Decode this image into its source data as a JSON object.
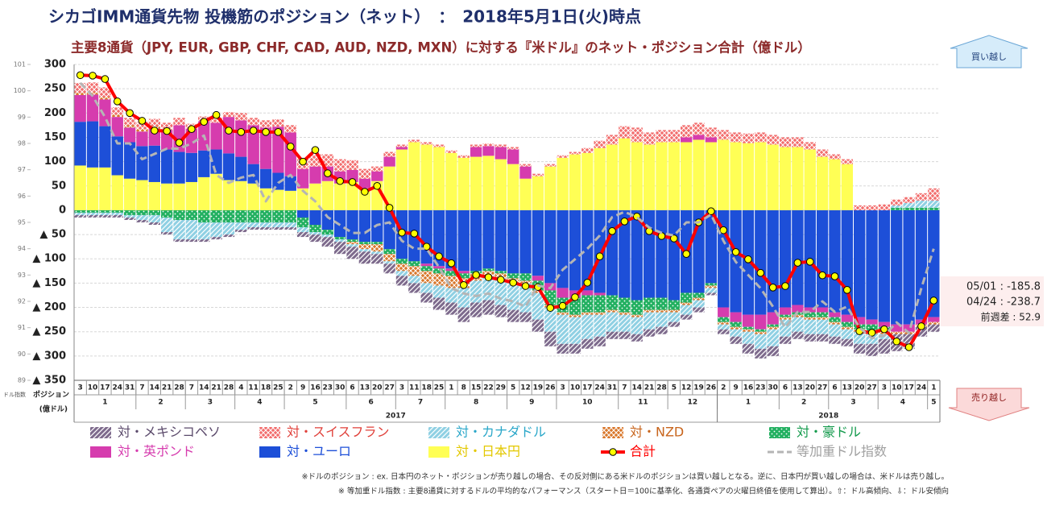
{
  "chart_data": {
    "type": "bar",
    "stacked": true,
    "title": "シカゴIMM通貨先物 投機筋のポジション（ネット）　：　2018年5月1日(火)時点",
    "subtitle": "主要8通貨（JPY, EUR, GBP, CHF, CAD, AUD, NZD, MXN）に対する『米ドル』のネット・ポジション合計（億ドル）",
    "y_axis_label": [
      "ポジション",
      "(億ドル)"
    ],
    "y2_axis_label": "ドル指数",
    "buttons": {
      "up": "買い越し",
      "down": "売り越し"
    },
    "annotations": [
      "05/01 : -185.8",
      "04/24 : -238.7",
      "前週差 : 52.9"
    ],
    "notes": [
      "※ドルのポジション : ex. 日本円のネット・ポジションが売り越しの場合、その反対側にある米ドルのポジションは買い越しとなる。逆に、日本円が買い越しの場合は、米ドルは売り越し。",
      "※ 等加重ドル指数 : 主要8通貨に対するドルの平均的なパフォーマンス（スタート日＝100に基準化、各通貨ペアの火曜日終値を使用して算出）。⇧：ドル高傾向、⇩：ドル安傾向"
    ],
    "years": [
      {
        "label": "2017",
        "months": [
          {
            "label": "1",
            "days": [
              "3",
              "10",
              "17",
              "24",
              "31"
            ]
          },
          {
            "label": "2",
            "days": [
              "7",
              "14",
              "21",
              "28"
            ]
          },
          {
            "label": "3",
            "days": [
              "7",
              "14",
              "21",
              "28"
            ]
          },
          {
            "label": "4",
            "days": [
              "4",
              "11",
              "18",
              "25"
            ]
          },
          {
            "label": "5",
            "days": [
              "2",
              "9",
              "16",
              "23",
              "30"
            ]
          },
          {
            "label": "6",
            "days": [
              "6",
              "13",
              "20",
              "27"
            ]
          },
          {
            "label": "7",
            "days": [
              "3",
              "11",
              "18",
              "25"
            ]
          },
          {
            "label": "8",
            "days": [
              "1",
              "8",
              "15",
              "22",
              "29"
            ]
          },
          {
            "label": "9",
            "days": [
              "5",
              "12",
              "19",
              "26"
            ]
          },
          {
            "label": "10",
            "days": [
              "3",
              "10",
              "17",
              "24",
              "31"
            ]
          },
          {
            "label": "11",
            "days": [
              "7",
              "14",
              "21",
              "28"
            ]
          },
          {
            "label": "12",
            "days": [
              "5",
              "12",
              "19",
              "26"
            ]
          }
        ]
      },
      {
        "label": "2018",
        "months": [
          {
            "label": "1",
            "days": [
              "2",
              "9",
              "16",
              "23",
              "30"
            ]
          },
          {
            "label": "2",
            "days": [
              "6",
              "13",
              "20",
              "27"
            ]
          },
          {
            "label": "3",
            "days": [
              "6",
              "13",
              "20",
              "27"
            ]
          },
          {
            "label": "4",
            "days": [
              "3",
              "10",
              "17",
              "24"
            ]
          },
          {
            "label": "5",
            "days": [
              "1"
            ]
          }
        ]
      }
    ],
    "ylim": [
      -350,
      300
    ],
    "yticks": [
      300,
      250,
      200,
      150,
      100,
      50,
      0,
      {
        "value": -50,
        "label": "▲ 50"
      },
      {
        "value": -100,
        "label": "▲ 100"
      },
      {
        "value": -150,
        "label": "▲ 150"
      },
      {
        "value": -200,
        "label": "▲ 200"
      },
      {
        "value": -250,
        "label": "▲ 250"
      },
      {
        "value": -300,
        "label": "▲ 300"
      },
      {
        "value": -350,
        "label": "▲ 350"
      }
    ],
    "y2lim": [
      89,
      101
    ],
    "y2ticks": [
      89,
      90,
      91,
      92,
      93,
      94,
      95,
      96,
      97,
      98,
      99,
      100,
      101
    ],
    "grid": true,
    "series": [
      {
        "name": "対・メキシコペソ",
        "type": "bar",
        "pattern": "diagonal",
        "color": "#7d6a8c",
        "label_color": "#5b4a6b",
        "values": [
          -5,
          -5,
          -5,
          -5,
          -5,
          -5,
          -5,
          -5,
          -5,
          -5,
          -5,
          -5,
          -5,
          -5,
          -5,
          -5,
          -5,
          -5,
          -10,
          -15,
          -20,
          -25,
          -25,
          -25,
          -20,
          -20,
          -20,
          -20,
          -20,
          -25,
          -25,
          -30,
          -30,
          -30,
          -25,
          -25,
          -20,
          -25,
          -30,
          -20,
          -20,
          -20,
          -20,
          -15,
          -15,
          -15,
          -15,
          -15,
          -10,
          -10,
          -10,
          -5,
          -10,
          -15,
          -20,
          -20,
          -20,
          -15,
          -15,
          -15,
          -15,
          -15,
          -15,
          -20,
          -25,
          -30,
          -35,
          -30,
          -20,
          -15
        ]
      },
      {
        "name": "対・スイスフラン",
        "type": "bar",
        "pattern": "cross",
        "color": "#f26d6d",
        "label_color": "#e0403a",
        "values": [
          20,
          20,
          20,
          15,
          15,
          15,
          15,
          15,
          15,
          10,
          10,
          10,
          10,
          15,
          15,
          15,
          15,
          15,
          20,
          25,
          25,
          25,
          20,
          20,
          10,
          10,
          5,
          5,
          5,
          5,
          5,
          5,
          5,
          5,
          5,
          5,
          5,
          5,
          5,
          5,
          5,
          10,
          15,
          20,
          25,
          30,
          25,
          25,
          25,
          25,
          25,
          20,
          20,
          20,
          20,
          20,
          20,
          20,
          20,
          15,
          15,
          10,
          10,
          10,
          10,
          12,
          12,
          12,
          15,
          25
        ]
      },
      {
        "name": "対・カナダドル",
        "type": "bar",
        "pattern": "diagonal",
        "color": "#8fd0e3",
        "label_color": "#2aa7c9",
        "values": [
          -5,
          -5,
          -5,
          -5,
          -5,
          -10,
          -15,
          -30,
          -40,
          -40,
          -35,
          -30,
          -25,
          -15,
          -10,
          -10,
          -10,
          -10,
          -10,
          -5,
          -5,
          -5,
          -5,
          -5,
          -5,
          -5,
          -10,
          -15,
          -20,
          -25,
          -30,
          -40,
          -45,
          -50,
          -55,
          -55,
          -60,
          -55,
          -50,
          -60,
          -55,
          -50,
          -45,
          -40,
          -35,
          -35,
          -35,
          -30,
          -20,
          -20,
          -15,
          -10,
          -10,
          -15,
          -25,
          -30,
          -35,
          -35,
          -30,
          -30,
          -30,
          -25,
          -20,
          -25,
          -20,
          -10,
          5,
          10,
          15,
          15
        ]
      },
      {
        "name": "対・NZD",
        "type": "bar",
        "pattern": "cross",
        "color": "#d9772b",
        "label_color": "#c8651d",
        "values": [
          5,
          5,
          5,
          5,
          5,
          5,
          5,
          0,
          0,
          0,
          0,
          0,
          0,
          0,
          0,
          0,
          0,
          0,
          0,
          0,
          0,
          0,
          -5,
          -10,
          -15,
          -15,
          -15,
          -20,
          -25,
          -25,
          -25,
          -20,
          -15,
          -10,
          -10,
          -10,
          -5,
          -5,
          -5,
          -5,
          -5,
          -5,
          -5,
          -5,
          -5,
          -5,
          -5,
          -5,
          -5,
          -5,
          -5,
          -5,
          -5,
          -5,
          -5,
          -5,
          -5,
          -5,
          -5,
          -5,
          -5,
          -5,
          -5,
          -5,
          -5,
          -5,
          -5,
          -5,
          -5,
          -5
        ]
      },
      {
        "name": "対・豪ドル",
        "type": "bar",
        "pattern": "dots",
        "color": "#22b060",
        "label_color": "#139a4c",
        "values": [
          -5,
          -5,
          -5,
          -5,
          -10,
          -10,
          -10,
          -15,
          -20,
          -20,
          -25,
          -25,
          -25,
          -25,
          -25,
          -25,
          -25,
          -25,
          -20,
          -15,
          -10,
          -5,
          -5,
          -5,
          -5,
          -10,
          -10,
          -10,
          -10,
          -10,
          -10,
          -10,
          -5,
          -5,
          -5,
          -10,
          -15,
          -20,
          -30,
          -30,
          -35,
          -35,
          -35,
          -30,
          -30,
          -30,
          -25,
          -25,
          -20,
          -20,
          -10,
          -5,
          -10,
          -10,
          -5,
          -5,
          -5,
          -5,
          -5,
          -10,
          -10,
          -10,
          -10,
          -10,
          -15,
          -10,
          5,
          5,
          5,
          5
        ]
      },
      {
        "name": "対・英ポンド",
        "type": "bar",
        "pattern": "solid",
        "color": "#d63cae",
        "label_color": "#d63cae",
        "values": [
          55,
          55,
          55,
          40,
          30,
          30,
          35,
          40,
          55,
          50,
          60,
          55,
          75,
          75,
          80,
          85,
          95,
          90,
          40,
          35,
          30,
          25,
          25,
          20,
          20,
          20,
          5,
          0,
          -5,
          -5,
          -5,
          -5,
          20,
          20,
          25,
          30,
          25,
          -10,
          -15,
          -20,
          -15,
          -10,
          -5,
          0,
          0,
          0,
          0,
          0,
          0,
          10,
          10,
          10,
          -20,
          -20,
          -25,
          -30,
          -25,
          -15,
          -15,
          -10,
          -10,
          -10,
          -15,
          -15,
          -10,
          -10,
          -15,
          -15,
          -10,
          -10
        ]
      },
      {
        "name": "対・ユーロ",
        "type": "bar",
        "pattern": "solid",
        "color": "#1d4fd8",
        "label_color": "#1d4fd8",
        "values": [
          90,
          95,
          85,
          80,
          75,
          70,
          75,
          70,
          65,
          60,
          55,
          50,
          55,
          50,
          40,
          40,
          35,
          30,
          -15,
          -30,
          -40,
          -55,
          -60,
          -65,
          -65,
          -80,
          -100,
          -105,
          -110,
          -115,
          -120,
          -125,
          -125,
          -120,
          -125,
          -130,
          -130,
          -135,
          -150,
          -160,
          -165,
          -165,
          -170,
          -175,
          -180,
          -185,
          -180,
          -180,
          -185,
          -170,
          -170,
          -150,
          -200,
          -210,
          -215,
          -215,
          -210,
          -200,
          -195,
          -200,
          -200,
          -210,
          -215,
          -220,
          -225,
          -230,
          -235,
          -235,
          -225,
          -220
        ]
      },
      {
        "name": "対・日本円",
        "type": "bar",
        "pattern": "solid",
        "color": "#ffff55",
        "label_color": "#e3c800",
        "values": [
          92,
          88,
          88,
          72,
          65,
          62,
          58,
          55,
          55,
          58,
          68,
          75,
          62,
          60,
          55,
          45,
          42,
          40,
          45,
          55,
          60,
          55,
          58,
          45,
          60,
          90,
          125,
          140,
          135,
          130,
          118,
          108,
          110,
          112,
          105,
          95,
          65,
          70,
          90,
          108,
          115,
          118,
          128,
          135,
          148,
          140,
          135,
          140,
          140,
          140,
          145,
          140,
          145,
          140,
          138,
          140,
          135,
          130,
          130,
          125,
          110,
          105,
          95,
          0,
          0,
          0,
          0,
          0,
          0,
          0
        ]
      },
      {
        "name": "合計",
        "type": "line",
        "marker": true,
        "color": "#ff0000",
        "label_color": "#ff0000",
        "values": [
          278,
          277,
          270,
          224,
          200,
          184,
          164,
          163,
          139,
          167,
          182,
          196,
          164,
          161,
          164,
          161,
          161,
          131,
          100,
          124,
          76,
          60,
          58,
          38,
          50,
          5,
          -46,
          -48,
          -75,
          -95,
          -109,
          -154,
          -133,
          -138,
          -143,
          -149,
          -156,
          -158,
          -201,
          -197,
          -179,
          -149,
          -95,
          -43,
          -23,
          -13,
          -43,
          -53,
          -58,
          -90,
          -25,
          -2,
          -41,
          -86,
          -101,
          -129,
          -159,
          -156,
          -108,
          -106,
          -134,
          -136,
          -164,
          -249,
          -252,
          -245,
          -270,
          -282,
          -238.7,
          -185.8
        ]
      },
      {
        "name": "等加重ドル指数",
        "type": "line",
        "dashed": true,
        "axis": "y2",
        "color": "#b5b5b5",
        "label_color": "#a0a0a0",
        "values": [
          100.3,
          99.8,
          99.0,
          98.0,
          98.0,
          97.4,
          97.6,
          97.8,
          97.8,
          98.0,
          98.3,
          96.8,
          96.5,
          96.7,
          96.8,
          95.8,
          96.5,
          96.8,
          96.2,
          95.8,
          95.2,
          94.9,
          94.6,
          94.6,
          94.9,
          95.0,
          94.3,
          94.0,
          94.0,
          93.3,
          92.5,
          92.3,
          92.2,
          92.3,
          92.1,
          92.0,
          91.8,
          92.6,
          92.5,
          93.2,
          93.6,
          94.0,
          94.5,
          95.2,
          95.4,
          95.2,
          94.8,
          94.6,
          94.5,
          95.0,
          95.0,
          95.3,
          94.3,
          93.5,
          93.0,
          92.5,
          91.8,
          91.0,
          91.6,
          91.6,
          92.0,
          91.6,
          91.8,
          91.0,
          90.6,
          90.7,
          91.2,
          90.8,
          92.5,
          94.0
        ]
      }
    ]
  }
}
